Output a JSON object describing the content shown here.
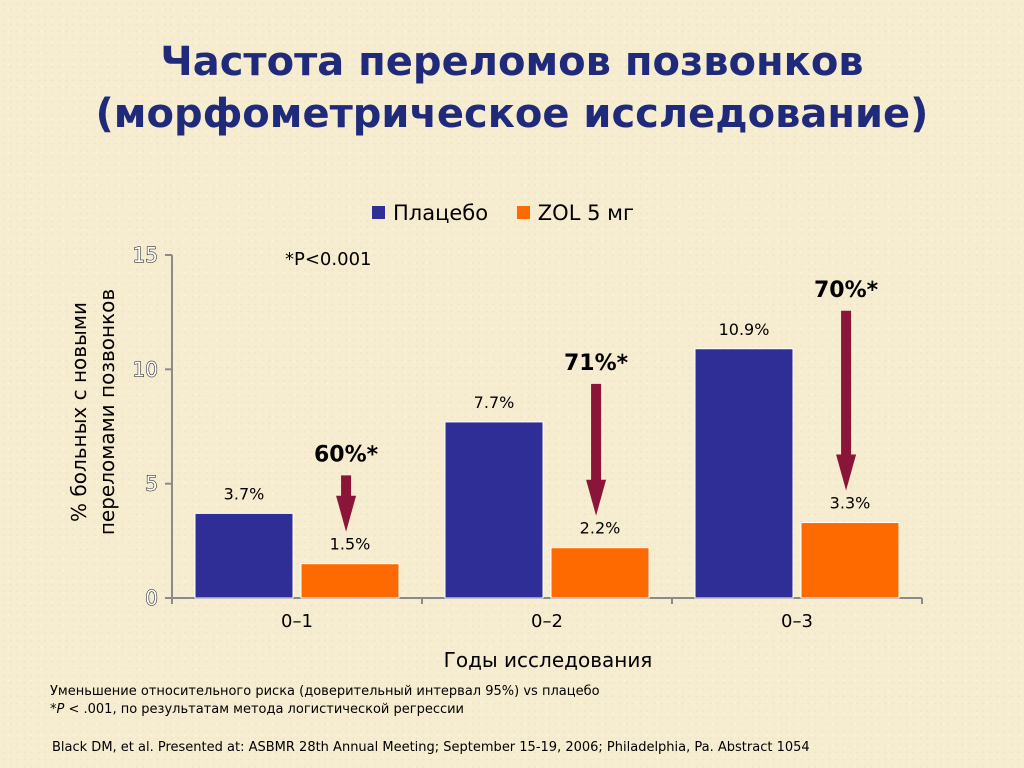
{
  "title": {
    "line1": "Частота переломов позвонков",
    "line2": "(морфометрическое исследование)"
  },
  "pvalue_note": "*P<0.001",
  "footnote": {
    "line1": "Уменьшение относительного риска (доверительный интервал 95%) vs плацебо",
    "line2_prefix": "*",
    "line2_p": "P",
    "line2_rest": " < .001, по результатам метода логистической регрессии"
  },
  "citation": "Black DM, et al. Presented at: ASBMR 28th Annual Meeting; September 15-19, 2006; Philadelphia, Pa. Abstract 1054",
  "colors": {
    "placebo": "#2e2e96",
    "zol": "#ff6a00",
    "arrow": "#8b1538",
    "title": "#1f2a7a"
  },
  "chart_data": {
    "type": "bar",
    "xlabel": "Годы исследования",
    "ylabel_line1": "% больных с новыми",
    "ylabel_line2": "переломами позвонков",
    "ylim": [
      0,
      15
    ],
    "yticks": [
      "0",
      "5",
      "10",
      "15"
    ],
    "categories": [
      "0–1",
      "0–2",
      "0–3"
    ],
    "series": [
      {
        "name": "Плацебо",
        "values": [
          3.7,
          7.7,
          10.9
        ],
        "labels": [
          "3.7%",
          "7.7%",
          "10.9%"
        ]
      },
      {
        "name": "ZOL 5 мг",
        "values": [
          1.5,
          2.2,
          3.3
        ],
        "labels": [
          "1.5%",
          "2.2%",
          "3.3%"
        ]
      }
    ],
    "risk_reductions": [
      "60%*",
      "71%*",
      "70%*"
    ],
    "legend_position": "top"
  }
}
